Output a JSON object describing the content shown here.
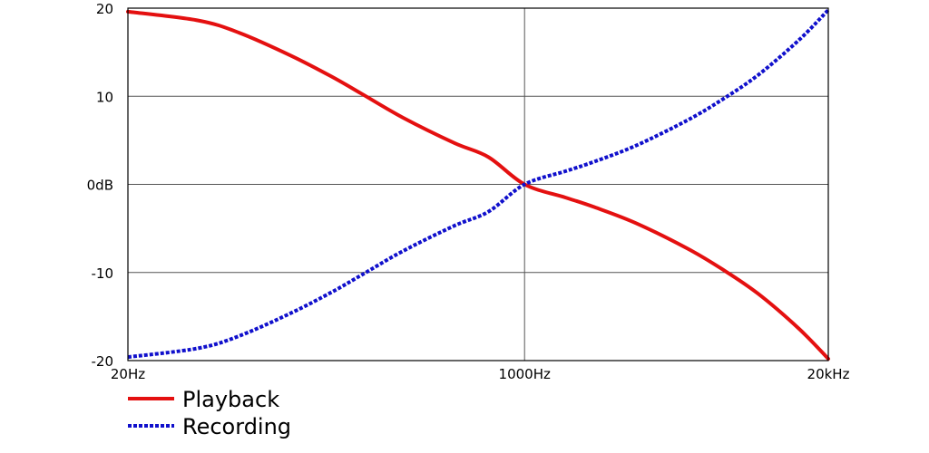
{
  "chart_data": {
    "type": "line",
    "title": "",
    "xlabel": "",
    "ylabel": "",
    "xscale": "log",
    "x_ticks": [
      {
        "value": 20,
        "label": "20Hz"
      },
      {
        "value": 1000,
        "label": "1000Hz"
      },
      {
        "value": 20000,
        "label": "20kHz"
      }
    ],
    "y_ticks": [
      {
        "value": 20,
        "label": "20"
      },
      {
        "value": 10,
        "label": "10"
      },
      {
        "value": 0,
        "label": "0dB"
      },
      {
        "value": -10,
        "label": "-10"
      },
      {
        "value": -20,
        "label": "-20"
      }
    ],
    "xlim": [
      20,
      20000
    ],
    "ylim": [
      -20,
      20
    ],
    "grid": true,
    "legend_position": "bottom-left",
    "x": [
      20,
      40,
      60,
      100,
      150,
      200,
      300,
      500,
      700,
      1000,
      1500,
      2000,
      3000,
      5000,
      7000,
      10000,
      15000,
      20000
    ],
    "series": [
      {
        "name": "Playback",
        "color": "#e41010",
        "style": "solid",
        "values": [
          19.6,
          18.6,
          17.2,
          14.6,
          12.2,
          10.3,
          7.6,
          4.7,
          3.1,
          0.0,
          -1.5,
          -2.6,
          -4.4,
          -7.3,
          -9.6,
          -12.4,
          -16.4,
          -19.8
        ]
      },
      {
        "name": "Recording",
        "color": "#1010cc",
        "style": "dotted",
        "values": [
          -19.6,
          -18.6,
          -17.2,
          -14.6,
          -12.2,
          -10.3,
          -7.6,
          -4.7,
          -3.1,
          0.0,
          1.5,
          2.6,
          4.4,
          7.3,
          9.6,
          12.4,
          16.4,
          19.8
        ]
      }
    ]
  }
}
